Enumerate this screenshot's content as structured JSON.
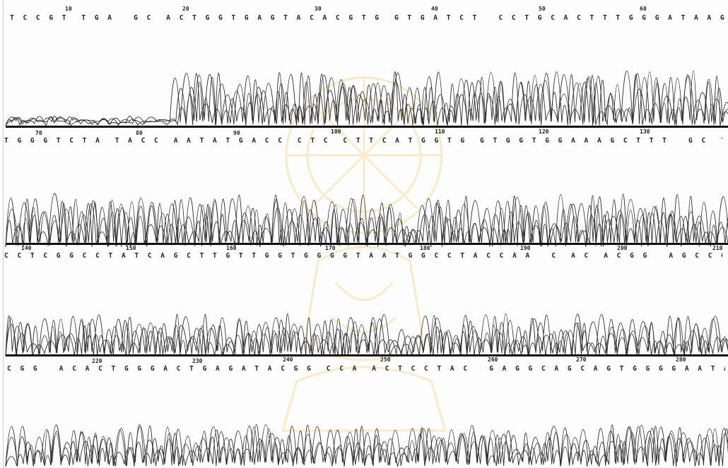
{
  "colors": {
    "trace": "#2b2b2b",
    "watermark": "#f3c96a",
    "baseline": "#111111"
  },
  "panels": [
    {
      "sequence": "T C C G T  T G A   G C  A C T G G T G A G T A C A C G T G  G T G A T C T   C C T G C A C T T T G G G A T A A G C C T G G G A A C",
      "ticks": [
        "10",
        "20",
        "30",
        "40",
        "50",
        "60"
      ]
    },
    {
      "sequence": "T G G G T C T A  T A C C  A A T A T G A C C  C T C  C T T C A T G G T G  G T G G T G G A A A G C T T T   G C  T T G T G G G A T G G G C",
      "ticks": [
        "70",
        "80",
        "90",
        "100",
        "110",
        "120",
        "130"
      ]
    },
    {
      "sequence": "C C T C G G C C T A T C A G C T T G T T G G T G G G G T A A T G G C C T A C C A A   C  A C  A C G G   A G C C G G  C T G A G A G   T G A C",
      "ticks": [
        "140",
        "150",
        "160",
        "170",
        "180",
        "190",
        "200",
        "210"
      ]
    },
    {
      "sequence": "C G G   A C A C T G G G A C T G A G A T A C G G  C C A  A C T C C T A C   G A G G C A G C A G T G G G G A A T A T T G C A C A A T G G G C G C",
      "ticks": [
        "220",
        "230",
        "240",
        "250",
        "260",
        "270",
        "280"
      ]
    }
  ]
}
